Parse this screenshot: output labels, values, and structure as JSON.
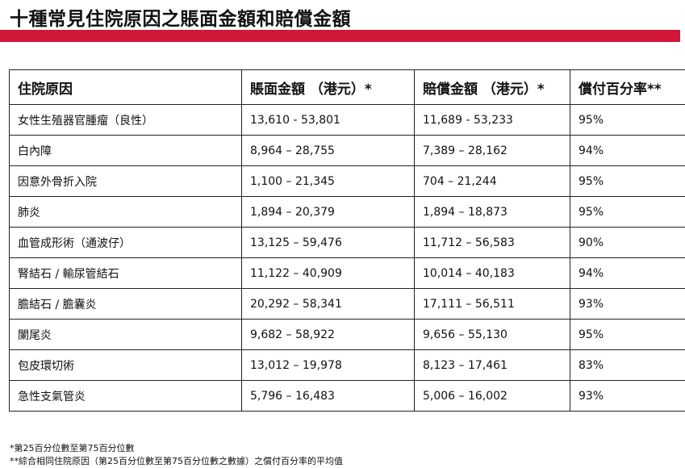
{
  "title": "十種常見住院原因之賬面金額和賠償金額",
  "table": {
    "headers": [
      "住院原因",
      "賬面金額 （港元）*",
      "賠償金額 （港元）*",
      "償付百分率**"
    ],
    "rows": [
      [
        "女性生殖器官腫瘤（良性）",
        "13,610 - 53,801",
        "11,689 - 53,233",
        "95%"
      ],
      [
        "白內障",
        "8,964 – 28,755",
        "7,389 – 28,162",
        "94%"
      ],
      [
        "因意外骨折入院",
        "1,100 – 21,345",
        "704 – 21,244",
        "95%"
      ],
      [
        "肺炎",
        "1,894 – 20,379",
        "1,894 – 18,873",
        "95%"
      ],
      [
        "血管成形術（通波仔）",
        "13,125 – 59,476",
        "11,712 – 56,583",
        "90%"
      ],
      [
        "腎結石 / 輸尿管結石",
        "11,122 – 40,909",
        "10,014 – 40,183",
        "94%"
      ],
      [
        "膽結石 / 膽囊炎",
        "20,292 – 58,341",
        "17,111 – 56,511",
        "93%"
      ],
      [
        "闌尾炎",
        "9,682 – 58,922",
        "9,656 – 55,130",
        "95%"
      ],
      [
        "包皮環切術",
        "13,012 – 19,978",
        "8,123 – 17,461",
        "83%"
      ],
      [
        "急性支氣管炎",
        "5,796 – 16,483",
        "5,006 – 16,002",
        "93%"
      ]
    ]
  },
  "footnotes": [
    "*第25百分位數至第75百分位數",
    "**綜合相同住院原因（第25百分位數至第75百分位數之數據）之償付百分率的平均值"
  ]
}
